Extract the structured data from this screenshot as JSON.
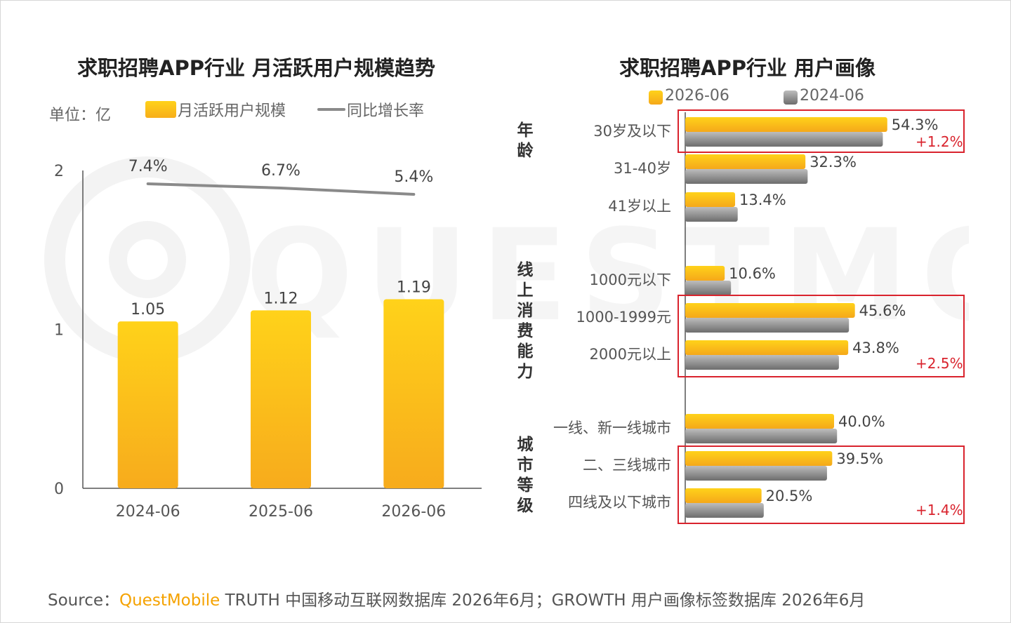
{
  "left_chart": {
    "title": "求职招聘APP行业 月活跃用户规模趋势",
    "unit_label": "单位：亿",
    "legend": {
      "bar": "月活跃用户规模",
      "line": "同比增长率"
    },
    "chart_data": {
      "type": "bar",
      "categories": [
        "2024-06",
        "2025-06",
        "2026-06"
      ],
      "series": [
        {
          "name": "月活跃用户规模",
          "values": [
            1.05,
            1.12,
            1.19
          ],
          "labels": [
            "1.05",
            "1.12",
            "1.19"
          ]
        },
        {
          "name": "同比增长率",
          "values": [
            7.4,
            6.7,
            5.4
          ],
          "labels": [
            "7.4%",
            "6.7%",
            "5.4%"
          ]
        }
      ],
      "yticks": [
        "0",
        "1",
        "2"
      ],
      "ylim": [
        0,
        2
      ],
      "grid": false,
      "colors": {
        "bar": "#FFC20E",
        "line": "#8A8A8A"
      }
    }
  },
  "right_chart": {
    "title": "求职招聘APP行业 用户画像",
    "legend": [
      "2026-06",
      "2024-06"
    ],
    "chart_data": {
      "type": "bar",
      "orientation": "horizontal",
      "groups": [
        {
          "label": "年龄",
          "categories": [
            "30岁及以下",
            "31-40岁",
            "41岁以上"
          ]
        },
        {
          "label": "线上消费能力",
          "categories": [
            "1000元以下",
            "1000-1999元",
            "2000元以上"
          ]
        },
        {
          "label": "城市等级",
          "categories": [
            "一线、新一线城市",
            "二、三线城市",
            "四线及以下城市"
          ]
        }
      ],
      "categories": [
        "30岁及以下",
        "31-40岁",
        "41岁以上",
        "1000元以下",
        "1000-1999元",
        "2000元以上",
        "一线、新一线城市",
        "二、三线城市",
        "四线及以下城市"
      ],
      "series": [
        {
          "name": "2026-06",
          "values": [
            54.3,
            32.3,
            13.4,
            10.6,
            45.6,
            43.8,
            40.0,
            39.5,
            20.5
          ],
          "labels": [
            "54.3%",
            "32.3%",
            "13.4%",
            "10.6%",
            "45.6%",
            "43.8%",
            "40.0%",
            "39.5%",
            "20.5%"
          ]
        },
        {
          "name": "2024-06",
          "values": [
            53.1,
            32.9,
            14.1,
            12.3,
            44.0,
            41.3,
            40.8,
            38.1,
            21.1
          ]
        }
      ],
      "highlights": [
        {
          "label": "+1.2%"
        },
        {
          "label": "+2.5%"
        },
        {
          "label": "+1.4%"
        }
      ],
      "colors": {
        "2026-06": "#FFC20E",
        "2024-06": "#8A8A8A",
        "highlight": "#D9232D"
      }
    }
  },
  "source": {
    "prefix": "Source：",
    "brand": "QuestMobile",
    "text": " TRUTH 中国移动互联网数据库 2026年6月；GROWTH 用户画像标签数据库 2026年6月"
  },
  "watermark_text": "QUESTMOBILE"
}
